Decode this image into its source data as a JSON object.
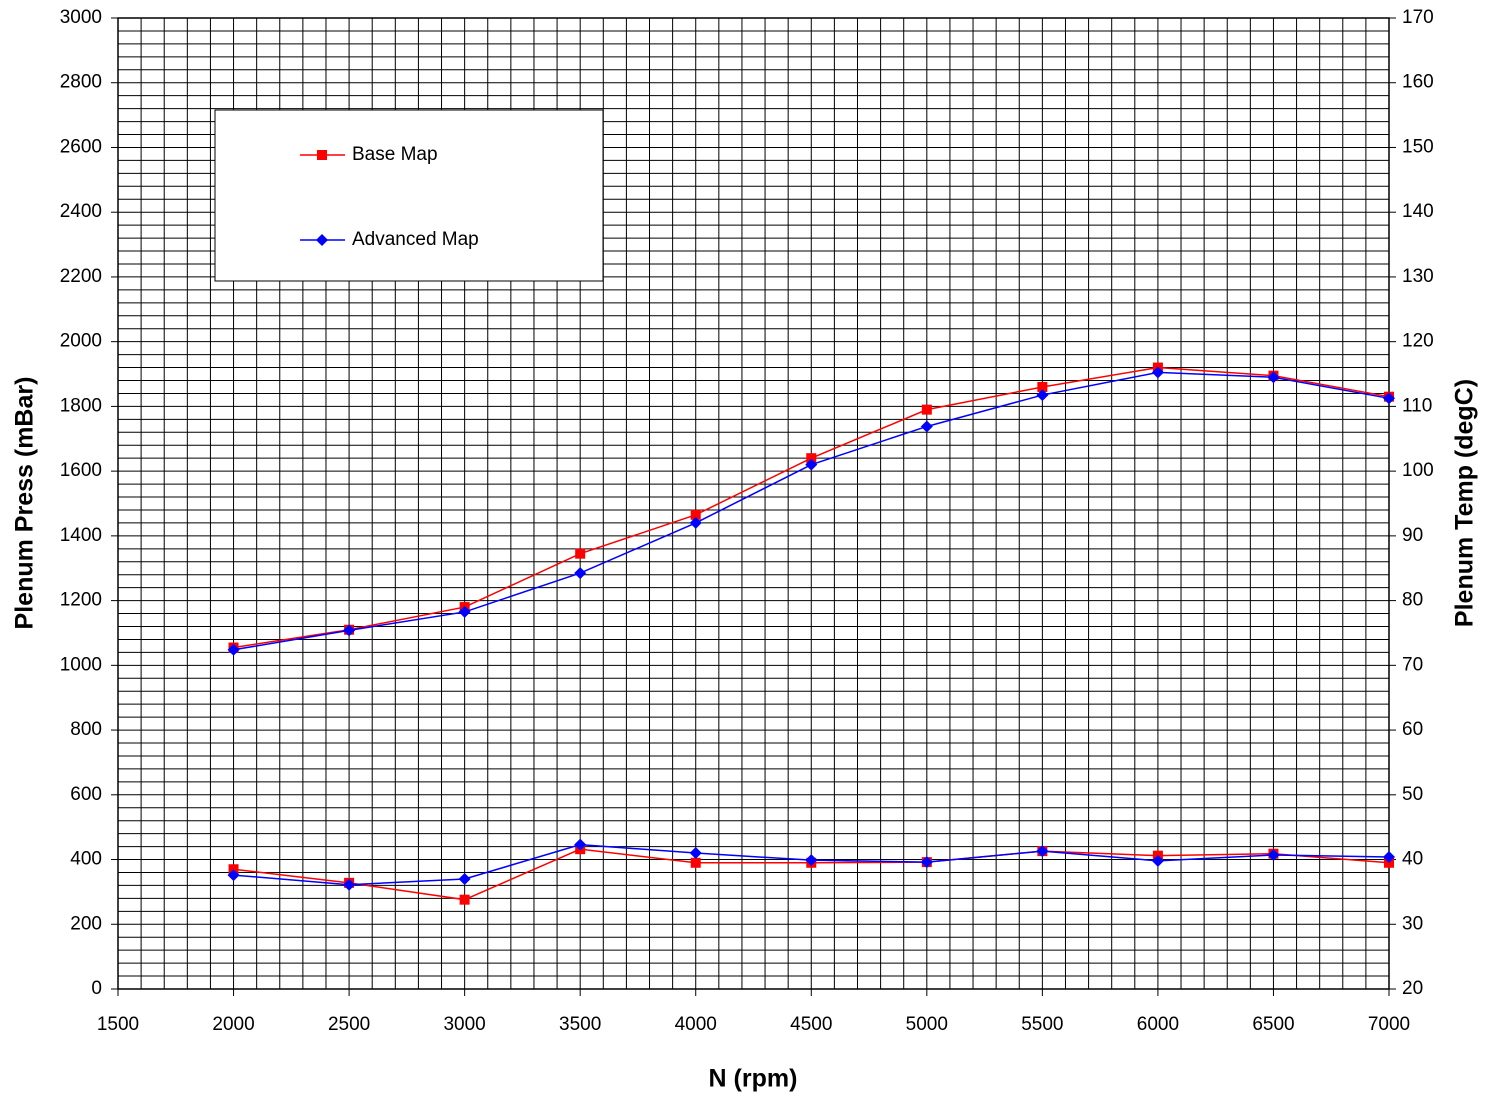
{
  "chart_data": {
    "type": "line",
    "x_label": "N (rpm)",
    "y_label": "Plenum Press (mBar)",
    "y2_label": "Plenum Temp (degC)",
    "x": [
      2000,
      2500,
      3000,
      3500,
      4000,
      4500,
      5000,
      5500,
      6000,
      6500,
      7000
    ],
    "series": [
      {
        "name": "Base Map",
        "color": "#ff0000",
        "marker": "square",
        "values": [
          1055,
          1110,
          1180,
          1345,
          1465,
          1640,
          1790,
          1860,
          1920,
          1895,
          1830
        ],
        "y2_values": [
          38.5,
          36.4,
          33.8,
          41.6,
          39.5,
          39.5,
          39.6,
          41.3,
          40.6,
          40.9,
          39.5
        ]
      },
      {
        "name": "Advanced Map",
        "color": "#0000ff",
        "marker": "diamond",
        "values": [
          1048,
          1108,
          1165,
          1285,
          1440,
          1620,
          1738,
          1835,
          1905,
          1890,
          1825
        ],
        "y2_values": [
          37.6,
          36.1,
          37.0,
          42.3,
          41.0,
          39.9,
          39.6,
          41.3,
          39.8,
          40.7,
          40.4
        ]
      }
    ],
    "xlim": [
      1500,
      7000
    ],
    "xticks": [
      1500,
      2000,
      2500,
      3000,
      3500,
      4000,
      4500,
      5000,
      5500,
      6000,
      6500,
      7000
    ],
    "ylim": [
      0,
      3000
    ],
    "yticks": [
      0,
      200,
      400,
      600,
      800,
      1000,
      1200,
      1400,
      1600,
      1800,
      2000,
      2200,
      2400,
      2600,
      2800,
      3000
    ],
    "y2lim": [
      20,
      170
    ],
    "y2ticks": [
      20,
      30,
      40,
      50,
      60,
      70,
      80,
      90,
      100,
      110,
      120,
      130,
      140,
      150,
      160,
      170
    ],
    "x_minor_step": 100,
    "y_minor_step": 40,
    "grid": true,
    "legend": "upper left"
  }
}
